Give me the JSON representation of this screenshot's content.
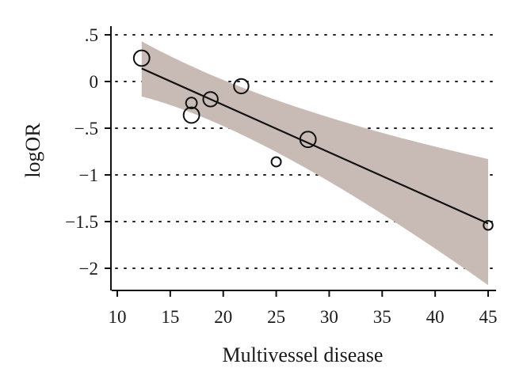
{
  "chart_data": {
    "type": "scatter",
    "title": "",
    "xlabel": "Multivessel disease",
    "ylabel": "logOR",
    "xlim": [
      9.5,
      46
    ],
    "ylim": [
      -2.2,
      0.52
    ],
    "x_ticks": [
      10,
      15,
      20,
      25,
      30,
      35,
      40,
      45
    ],
    "x_tick_labels": [
      "10",
      "15",
      "20",
      "25",
      "30",
      "35",
      "40",
      "45"
    ],
    "y_ticks": [
      0.5,
      0,
      -0.5,
      -1,
      -1.5,
      -2
    ],
    "y_tick_labels": [
      ".5",
      "0",
      "-.5",
      "-1",
      "-1.5",
      "-2"
    ],
    "grid": "horizontal-dotted",
    "points": [
      {
        "x": 12.3,
        "y": 0.25,
        "weight": 3.0
      },
      {
        "x": 17.0,
        "y": -0.23,
        "weight": 1.7
      },
      {
        "x": 17.0,
        "y": -0.36,
        "weight": 3.0
      },
      {
        "x": 18.8,
        "y": -0.19,
        "weight": 2.7
      },
      {
        "x": 21.7,
        "y": -0.05,
        "weight": 2.7
      },
      {
        "x": 25.0,
        "y": -0.86,
        "weight": 1.3
      },
      {
        "x": 28.0,
        "y": -0.62,
        "weight": 3.0
      },
      {
        "x": 45.0,
        "y": -1.54,
        "weight": 1.2
      }
    ],
    "fit_line": {
      "x": [
        12.3,
        45.0
      ],
      "y": [
        0.14,
        -1.52
      ]
    },
    "confidence_band": {
      "x": [
        12.3,
        45.0
      ],
      "upper": [
        0.43,
        -0.83
      ],
      "lower": [
        -0.16,
        -2.18
      ],
      "pinch": {
        "x": 24.0,
        "upper": -0.28,
        "lower": -0.52
      }
    },
    "colors": {
      "band": "#c8bbb6",
      "line": "#111111",
      "marker": "#111111",
      "axis": "#111111",
      "grid": "#222222"
    }
  }
}
